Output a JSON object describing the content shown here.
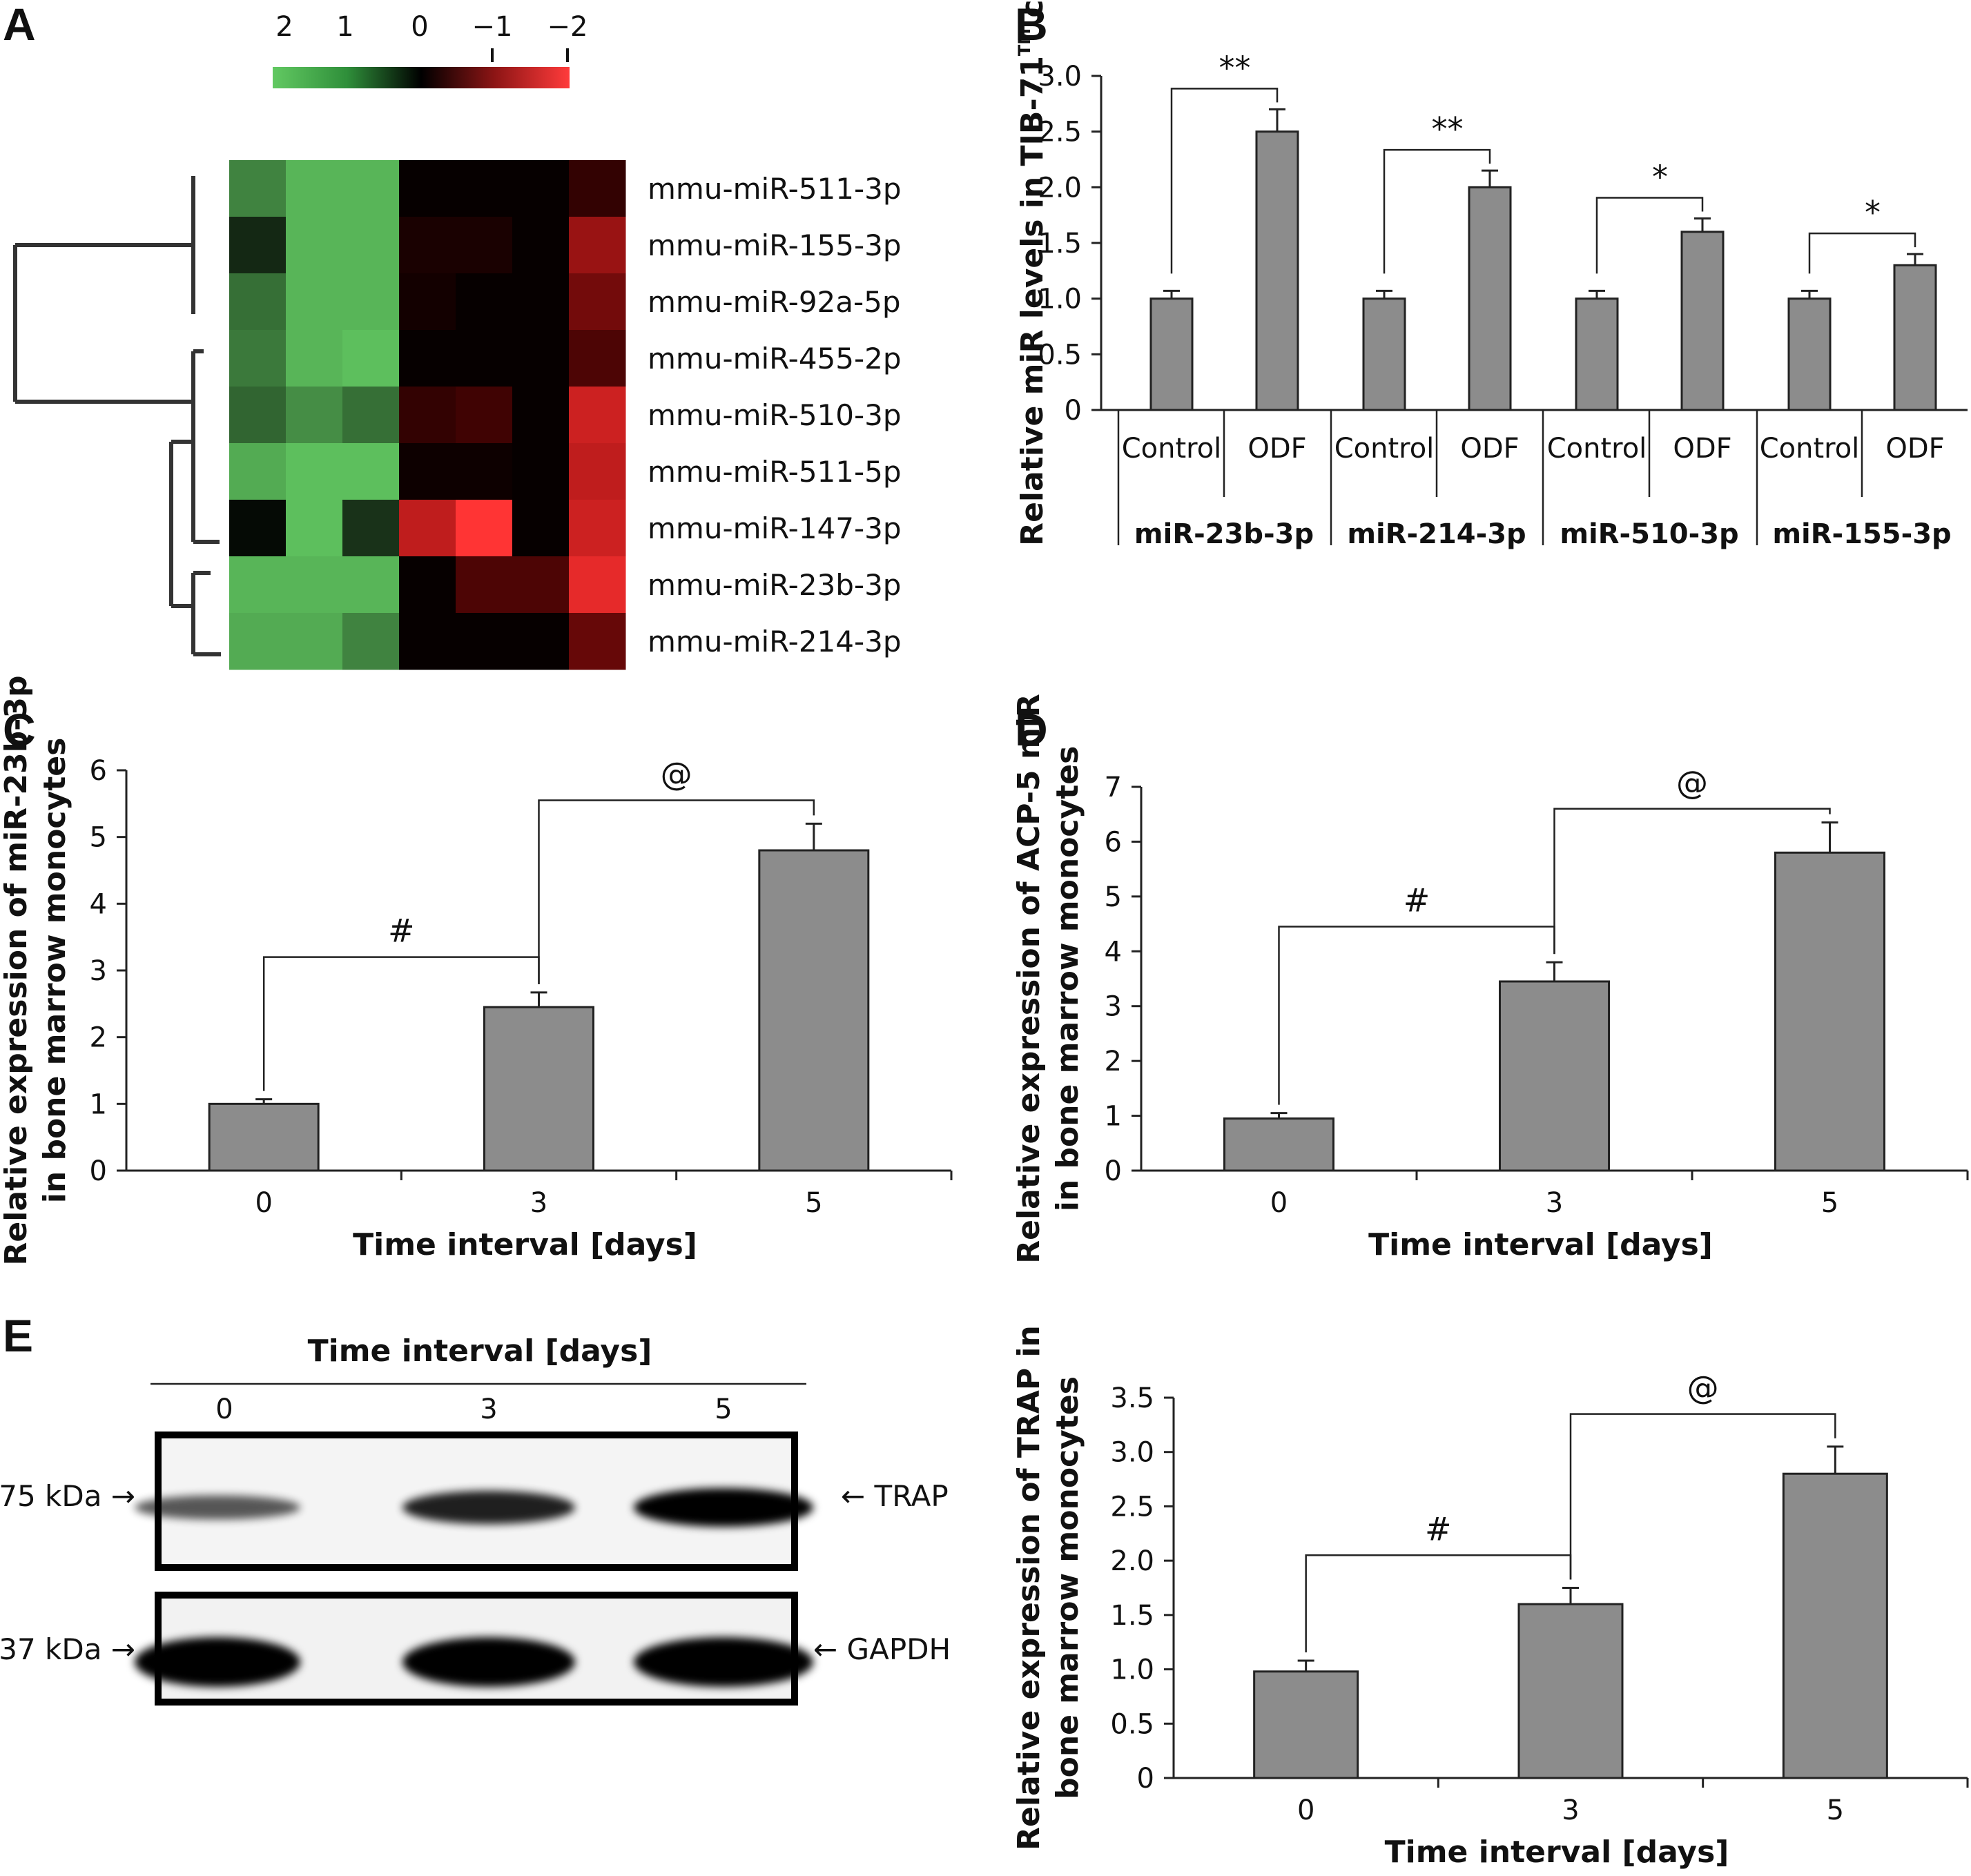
{
  "panel_labels": [
    "A",
    "B",
    "C",
    "D",
    "E"
  ],
  "colors": {
    "bar": "#8c8c8c",
    "heat_green": "#4ec24e",
    "heat_black": "#000000",
    "heat_red": "#ff3333"
  },
  "chart_data": [
    {
      "id": "A",
      "type": "heatmap",
      "colorbar_ticks": [
        "2",
        "1",
        "0",
        "−1",
        "−2"
      ],
      "rows": [
        "mmu-miR-511-3p",
        "mmu-miR-155-3p",
        "mmu-miR-92a-5p",
        "mmu-miR-455-2p",
        "mmu-miR-510-3p",
        "mmu-miR-511-5p",
        "mmu-miR-147-3p",
        "mmu-miR-23b-3p",
        "mmu-miR-214-3p"
      ],
      "values": [
        [
          1.3,
          1.8,
          1.8,
          -0.05,
          -0.05,
          -0.05,
          -0.4
        ],
        [
          0.4,
          1.8,
          1.8,
          -0.2,
          -0.2,
          -0.05,
          -1.2
        ],
        [
          1.1,
          1.8,
          1.8,
          -0.15,
          -0.05,
          -0.05,
          -0.9
        ],
        [
          1.2,
          1.8,
          1.9,
          -0.05,
          -0.05,
          -0.05,
          -0.6
        ],
        [
          1.0,
          1.4,
          1.1,
          -0.4,
          -0.5,
          -0.05,
          -1.6
        ],
        [
          1.7,
          1.9,
          1.9,
          -0.1,
          -0.1,
          -0.05,
          -1.5
        ],
        [
          0.1,
          1.9,
          0.5,
          -1.5,
          -2.0,
          -0.05,
          -1.6
        ],
        [
          1.8,
          1.8,
          1.8,
          -0.05,
          -0.6,
          -0.6,
          -1.8
        ],
        [
          1.7,
          1.7,
          1.3,
          -0.05,
          -0.05,
          -0.05,
          -0.8
        ]
      ]
    },
    {
      "id": "B",
      "type": "bar",
      "ylabel_main": "Relative miR levels in TIB-71",
      "ylabel_sup": "TM",
      "ylabel_end": " cells",
      "ylim": [
        0,
        3.0
      ],
      "yticks": [
        "0",
        "0.5",
        "1.0",
        "1.5",
        "2.0",
        "2.5",
        "3.0"
      ],
      "groups": [
        {
          "name": "miR-23b-3p",
          "conditions": [
            "Control",
            "ODF"
          ],
          "values": [
            1.0,
            2.5
          ],
          "errors": [
            0.07,
            0.2
          ],
          "sig": "**"
        },
        {
          "name": "miR-214-3p",
          "conditions": [
            "Control",
            "ODF"
          ],
          "values": [
            1.0,
            2.0
          ],
          "errors": [
            0.07,
            0.15
          ],
          "sig": "**"
        },
        {
          "name": "miR-510-3p",
          "conditions": [
            "Control",
            "ODF"
          ],
          "values": [
            1.0,
            1.6
          ],
          "errors": [
            0.07,
            0.12
          ],
          "sig": "*"
        },
        {
          "name": "miR-155-3p",
          "conditions": [
            "Control",
            "ODF"
          ],
          "values": [
            1.0,
            1.3
          ],
          "errors": [
            0.07,
            0.1
          ],
          "sig": "*"
        }
      ]
    },
    {
      "id": "C",
      "type": "bar",
      "ylabel_line1": "Relative expression of miR-23b-3p",
      "ylabel_line2": "in bone marrow monocytes",
      "xlabel": "Time interval [days]",
      "categories": [
        "0",
        "3",
        "5"
      ],
      "values": [
        1.0,
        2.45,
        4.8
      ],
      "errors": [
        0.07,
        0.22,
        0.4
      ],
      "ylim": [
        0,
        6
      ],
      "yticks": [
        "0",
        "1",
        "2",
        "3",
        "4",
        "5",
        "6"
      ],
      "annotations": [
        {
          "from": 0,
          "to": 1,
          "label": "#"
        },
        {
          "from": 1,
          "to": 2,
          "label": "@"
        }
      ]
    },
    {
      "id": "D",
      "type": "bar",
      "ylabel_line1": "Relative expression of ACP-5 miR",
      "ylabel_line2": "in bone marrow monocytes",
      "xlabel": "Time interval [days]",
      "categories": [
        "0",
        "3",
        "5"
      ],
      "values": [
        0.95,
        3.45,
        5.8
      ],
      "errors": [
        0.1,
        0.35,
        0.55
      ],
      "ylim": [
        0,
        7
      ],
      "yticks": [
        "0",
        "1",
        "2",
        "3",
        "4",
        "5",
        "6",
        "7"
      ],
      "annotations": [
        {
          "from": 0,
          "to": 1,
          "label": "#"
        },
        {
          "from": 1,
          "to": 2,
          "label": "@"
        }
      ]
    },
    {
      "id": "E",
      "type": "bar",
      "ylabel_line1": "Relative expression of TRAP in",
      "ylabel_line2": "bone marrow monocytes",
      "xlabel": "Time interval [days]",
      "categories": [
        "0",
        "3",
        "5"
      ],
      "values": [
        0.98,
        1.6,
        2.8
      ],
      "errors": [
        0.1,
        0.15,
        0.25
      ],
      "ylim": [
        0,
        3.5
      ],
      "yticks": [
        "0",
        "0.5",
        "1.0",
        "1.5",
        "2.0",
        "2.5",
        "3.0",
        "3.5"
      ],
      "annotations": [
        {
          "from": 0,
          "to": 1,
          "label": "#"
        },
        {
          "from": 1,
          "to": 2,
          "label": "@"
        }
      ]
    }
  ],
  "blot": {
    "title": "Time interval [days]",
    "lanes": [
      "0",
      "3",
      "5"
    ],
    "bands": [
      {
        "size": "75 kDa →",
        "protein": "← TRAP",
        "intensity": [
          0.45,
          0.8,
          1.0
        ]
      },
      {
        "size": "37 kDa →",
        "protein": "← GAPDH",
        "intensity": [
          1.0,
          1.0,
          1.0
        ]
      }
    ]
  }
}
